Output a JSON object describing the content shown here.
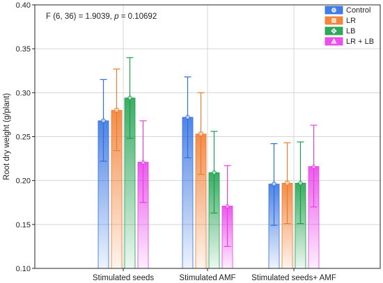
{
  "chart_data": {
    "type": "bar",
    "annotation": {
      "prefix": "F (6, 36) = 1.9039, ",
      "p_symbol": "p",
      "suffix": " = 0.10692"
    },
    "ylabel": "Root dry weight (g/plant)",
    "ylim": [
      0.1,
      0.4
    ],
    "yticks": [
      "0.10",
      "0.15",
      "0.20",
      "0.25",
      "0.30",
      "0.35",
      "0.40"
    ],
    "grid": true,
    "legend_position": "top-right",
    "categories": [
      "Stimulated seeds",
      "Stimulated AMF",
      "Stimulated seeds+ AMF"
    ],
    "series": [
      {
        "name": "Control",
        "color": "#2f6fe0",
        "marker": "circle",
        "values": [
          0.268,
          0.272,
          0.196
        ],
        "err_low": [
          0.222,
          0.226,
          0.149
        ],
        "err_high": [
          0.315,
          0.318,
          0.242
        ]
      },
      {
        "name": "LR",
        "color": "#f07a2a",
        "marker": "square",
        "values": [
          0.28,
          0.253,
          0.197
        ],
        "err_low": [
          0.234,
          0.207,
          0.151
        ],
        "err_high": [
          0.327,
          0.3,
          0.243
        ]
      },
      {
        "name": "LB",
        "color": "#1a9e4a",
        "marker": "diamond",
        "values": [
          0.294,
          0.209,
          0.197
        ],
        "err_low": [
          0.248,
          0.163,
          0.151
        ],
        "err_high": [
          0.34,
          0.256,
          0.244
        ]
      },
      {
        "name": "LR + LB",
        "color": "#e83ee8",
        "marker": "triangle",
        "values": [
          0.221,
          0.171,
          0.216
        ],
        "err_low": [
          0.175,
          0.125,
          0.17
        ],
        "err_high": [
          0.268,
          0.217,
          0.263
        ]
      }
    ]
  }
}
